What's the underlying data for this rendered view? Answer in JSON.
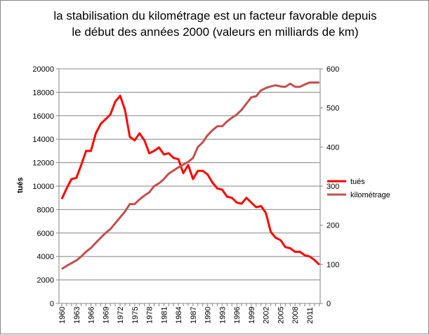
{
  "chart_data": {
    "type": "line",
    "title_line1": "la stabilisation du kilométrage est un facteur favorable depuis",
    "title_line2": "le début des années 2000 (valeurs en milliards de km)",
    "ylabel": "tués",
    "ylim": [
      0,
      20000
    ],
    "y2lim": [
      0,
      600
    ],
    "yticks": [
      0,
      2000,
      4000,
      6000,
      8000,
      10000,
      12000,
      14000,
      16000,
      18000,
      20000
    ],
    "y2ticks": [
      0,
      100,
      200,
      300,
      400,
      500,
      600
    ],
    "xtick_labels": [
      "1960",
      "1963",
      "1966",
      "1969",
      "1972",
      "1975",
      "1978",
      "1981",
      "1984",
      "1987",
      "1990",
      "1993",
      "1996",
      "1999",
      "2002",
      "2005",
      "2008",
      "2011"
    ],
    "grid": true,
    "legend_position": "right",
    "x": [
      1960,
      1961,
      1962,
      1963,
      1964,
      1965,
      1966,
      1967,
      1968,
      1969,
      1970,
      1971,
      1972,
      1973,
      1974,
      1975,
      1976,
      1977,
      1978,
      1979,
      1980,
      1981,
      1982,
      1983,
      1984,
      1985,
      1986,
      1987,
      1988,
      1989,
      1990,
      1991,
      1992,
      1993,
      1994,
      1995,
      1996,
      1997,
      1998,
      1999,
      2000,
      2001,
      2002,
      2003,
      2004,
      2005,
      2006,
      2007,
      2008,
      2009,
      2010,
      2011,
      2012,
      2013
    ],
    "series": [
      {
        "name": "tués",
        "axis": "left",
        "color": "#ff0000",
        "values": [
          8900,
          9800,
          10600,
          10700,
          11800,
          13000,
          13000,
          14500,
          15300,
          15700,
          16100,
          17200,
          17700,
          16500,
          14200,
          13900,
          14500,
          13900,
          12800,
          13000,
          13300,
          12700,
          12800,
          12400,
          12300,
          11100,
          11800,
          10600,
          11300,
          11300,
          11000,
          10300,
          9800,
          9700,
          9100,
          9000,
          8600,
          8500,
          9000,
          8600,
          8200,
          8300,
          7700,
          6100,
          5600,
          5400,
          4800,
          4700,
          4400,
          4400,
          4100,
          4000,
          3700,
          3300
        ]
      },
      {
        "name": "kilométrage",
        "axis": "right",
        "color": "#c0504d",
        "values": [
          88,
          96,
          103,
          110,
          120,
          132,
          142,
          155,
          168,
          180,
          190,
          205,
          220,
          235,
          254,
          254,
          266,
          276,
          284,
          300,
          307,
          318,
          332,
          340,
          348,
          355,
          362,
          372,
          400,
          412,
          430,
          443,
          453,
          453,
          465,
          475,
          483,
          495,
          511,
          527,
          530,
          545,
          551,
          555,
          558,
          555,
          554,
          562,
          554,
          554,
          560,
          565,
          565,
          565
        ]
      }
    ]
  }
}
